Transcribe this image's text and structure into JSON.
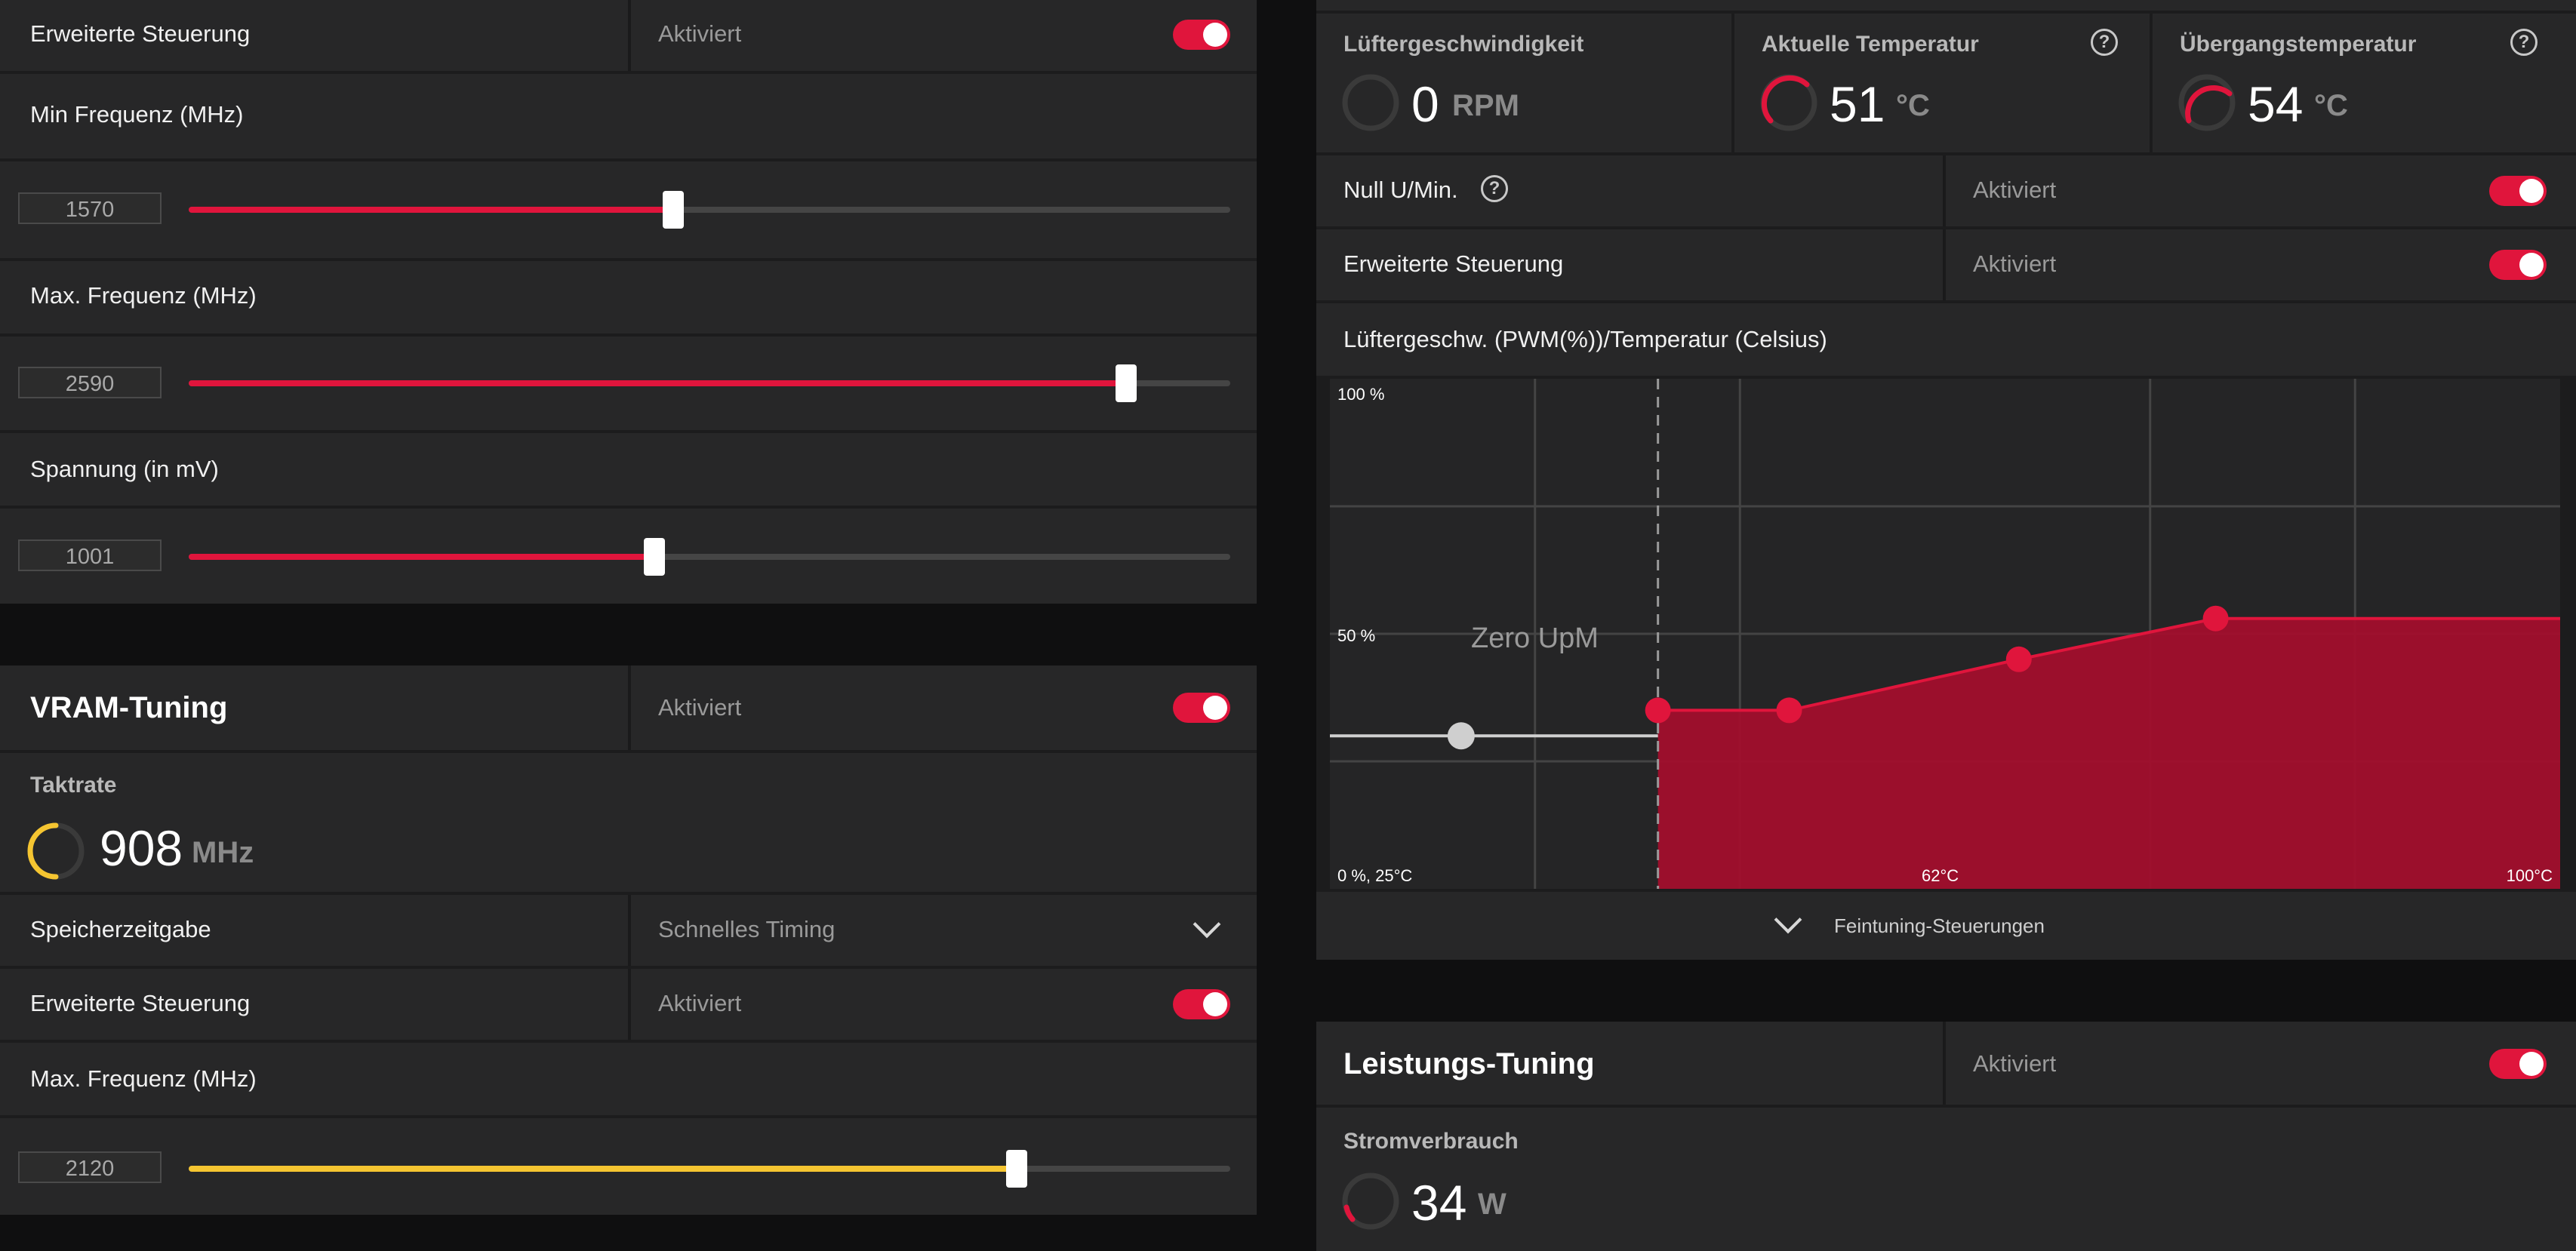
{
  "gpu": {
    "advanced": {
      "label": "Erweiterte Steuerung",
      "value": "Aktiviert"
    },
    "min_freq": {
      "label": "Min Frequenz (MHz)",
      "value": "1570",
      "fraction": 0.465
    },
    "max_freq": {
      "label": "Max. Frequenz (MHz)",
      "value": "2590",
      "fraction": 0.9
    },
    "voltage": {
      "label": "Spannung (in mV)",
      "value": "1001",
      "fraction": 0.447
    }
  },
  "vram": {
    "title": "VRAM-Tuning",
    "status": "Aktiviert",
    "clock_label": "Taktrate",
    "clock_value": "908",
    "clock_unit": "MHz",
    "timing_label": "Speicherzeitgabe",
    "timing_value": "Schnelles Timing",
    "advanced": {
      "label": "Erweiterte Steuerung",
      "value": "Aktiviert"
    },
    "max_freq": {
      "label": "Max. Frequenz (MHz)",
      "value": "2120",
      "fraction": 0.795
    }
  },
  "fan": {
    "speed": {
      "label": "Lüftergeschwindigkeit",
      "value": "0",
      "unit": "RPM"
    },
    "temp": {
      "label": "Aktuelle Temperatur",
      "value": "51",
      "unit": "°C"
    },
    "junction": {
      "label": "Übergangstemperatur",
      "value": "54",
      "unit": "°C"
    },
    "help": "?",
    "zero_rpm": {
      "label": "Null U/Min.",
      "value": "Aktiviert"
    },
    "advanced": {
      "label": "Erweiterte Steuerung",
      "value": "Aktiviert"
    },
    "curve_title": "Lüftergeschw. (PWM(%))/Temperatur (Celsius)",
    "fine_tuning": "Feintuning-Steuerungen"
  },
  "chart_data": {
    "type": "area",
    "title": "Lüftergeschw. (PWM(%))/Temperatur (Celsius)",
    "y_tick_labels": [
      "100 %",
      "50 %",
      "0 %, 25°C"
    ],
    "x_tick_labels": [
      "62°C",
      "100°C"
    ],
    "annotation": "Zero UpM",
    "zero_rpm_segment": {
      "x": [
        25,
        45
      ],
      "y": [
        30,
        30
      ]
    },
    "series": [
      {
        "x": [
          45,
          53,
          67,
          79,
          85
        ],
        "y": [
          35,
          35,
          45,
          53,
          53
        ]
      }
    ],
    "xlim": [
      25,
      100
    ],
    "ylim": [
      0,
      100
    ],
    "colors": {
      "fill": "#a50d2c",
      "line": "#e0153c",
      "grid": "#444444",
      "zero_segment": "#cfcfcf"
    },
    "grid": true
  },
  "power": {
    "title": "Leistungs-Tuning",
    "status": "Aktiviert",
    "consumption_label": "Stromverbrauch",
    "consumption_value": "34",
    "consumption_unit": "W"
  },
  "colors": {
    "accent": "#e0153c",
    "vram_accent": "#f5c531",
    "panel": "#272728",
    "background": "#0f0f10"
  }
}
